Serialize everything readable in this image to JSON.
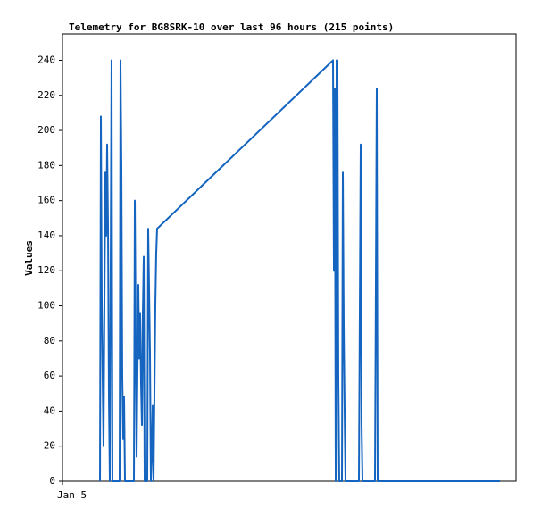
{
  "chart_data": {
    "type": "line",
    "title": "Telemetry for BG8SRK-10 over last 96 hours (215 points)",
    "y_label": "Values",
    "color": "#1565c0",
    "xlim": [
      0,
      96
    ],
    "xticks": [
      {
        "value": 0,
        "label": "Jan 5"
      }
    ],
    "ylim": [
      0,
      255
    ],
    "yticks": [
      0,
      20,
      40,
      60,
      80,
      100,
      120,
      140,
      160,
      180,
      200,
      220,
      240
    ],
    "x": [
      7.94,
      8.13,
      8.31,
      8.5,
      8.69,
      8.88,
      9.07,
      9.26,
      9.45,
      9.64,
      9.83,
      10.02,
      10.2,
      10.39,
      10.58,
      10.96,
      12.09,
      12.28,
      12.47,
      12.66,
      12.85,
      13.04,
      13.23,
      15.12,
      15.31,
      15.5,
      15.69,
      16.06,
      16.25,
      16.44,
      16.63,
      16.82,
      17.01,
      17.2,
      17.39,
      17.95,
      18.14,
      18.33,
      18.52,
      18.71,
      18.9,
      19.09,
      19.28,
      19.65,
      19.84,
      20.03,
      57.26,
      57.45,
      57.64,
      57.83,
      58.02,
      58.2,
      58.39,
      58.58,
      59.15,
      59.34,
      59.53,
      59.72,
      59.9,
      62.74,
      62.93,
      63.12,
      63.31,
      63.5,
      66.14,
      66.33,
      66.52,
      66.71,
      92.6
    ],
    "values": [
      0,
      208,
      105,
      60,
      20,
      100,
      176,
      140,
      192,
      145,
      48,
      0,
      120,
      240,
      0,
      0,
      0,
      240,
      180,
      60,
      24,
      48,
      0,
      0,
      160,
      80,
      14,
      112,
      70,
      96,
      56,
      32,
      96,
      128,
      0,
      0,
      144,
      110,
      73,
      0,
      15,
      43,
      0,
      100,
      130,
      144,
      240,
      120,
      224,
      0,
      240,
      240,
      60,
      0,
      0,
      176,
      88,
      40,
      0,
      0,
      96,
      192,
      32,
      0,
      0,
      112,
      224,
      0,
      0
    ]
  }
}
